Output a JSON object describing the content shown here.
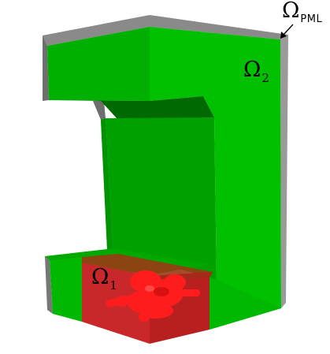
{
  "labels": {
    "pml": {
      "symbol": "Ω",
      "subscript": "PML"
    },
    "omega2": {
      "symbol": "Ω",
      "subscript": "2"
    },
    "omega1": {
      "symbol": "Ω",
      "subscript": "1"
    }
  },
  "colors": {
    "background": "#ffffff",
    "pml_layer": "#7a7a7a",
    "omega2_front": "#00b400",
    "omega2_shade": "#009a00",
    "omega2_dark": "#006e00",
    "omega1_box": "#cc1f1f",
    "omega1_object": "#ff2020"
  }
}
